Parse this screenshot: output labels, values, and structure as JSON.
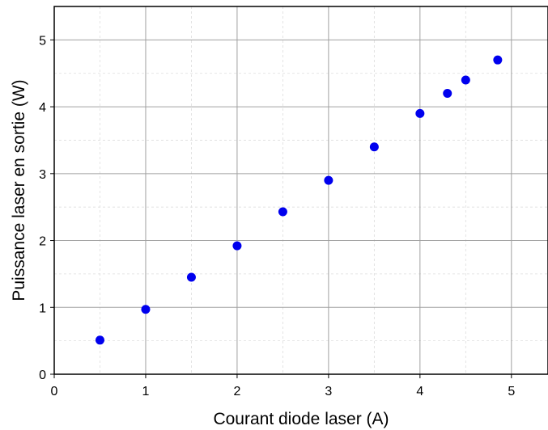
{
  "chart_data": {
    "type": "scatter",
    "title": "",
    "xlabel": "Courant diode laser (A)",
    "ylabel": "Puissance laser en sortie (W)",
    "xlim": [
      0,
      5.4
    ],
    "ylim": [
      0,
      5.5
    ],
    "x_ticks": [
      0,
      1,
      2,
      3,
      4,
      5
    ],
    "y_ticks": [
      0,
      1,
      2,
      3,
      4,
      5
    ],
    "x_tick_labels": [
      "0",
      "1",
      "2",
      "3",
      "4",
      "5"
    ],
    "y_tick_labels": [
      "0",
      "1",
      "2",
      "3",
      "4",
      "5"
    ],
    "grid": "major and minor",
    "marker_color": "#0000ee",
    "series": [
      {
        "x": [
          0.5,
          1.0,
          1.5,
          2.0,
          2.5,
          3.0,
          3.5,
          4.0,
          4.3,
          4.5,
          4.85
        ],
        "y": [
          0.51,
          0.97,
          1.45,
          1.92,
          2.43,
          2.9,
          3.4,
          3.9,
          4.2,
          4.4,
          4.7
        ]
      }
    ]
  }
}
